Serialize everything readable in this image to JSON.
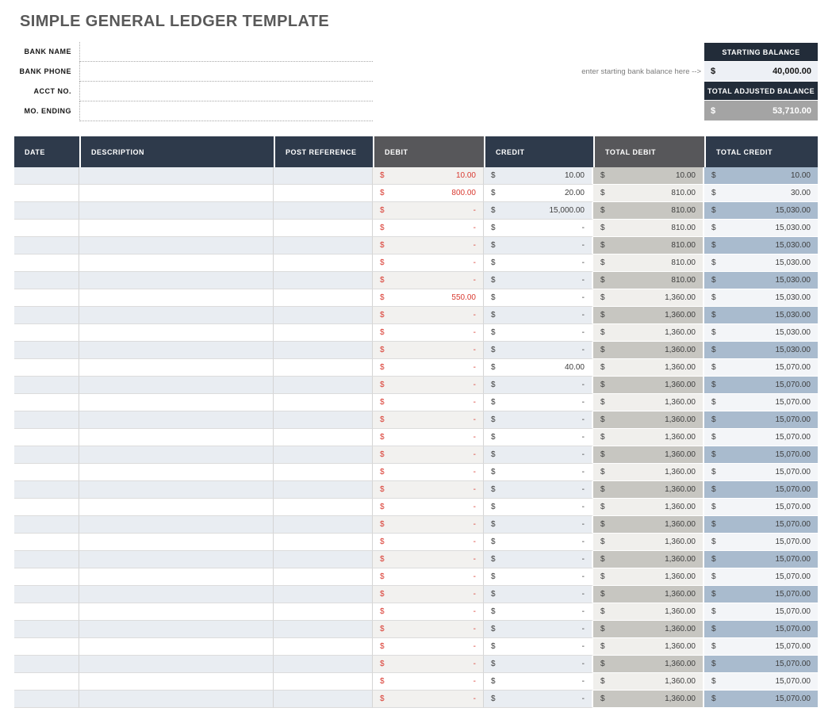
{
  "page_title": "SIMPLE GENERAL LEDGER TEMPLATE",
  "account_form": {
    "fields": [
      {
        "label": "BANK NAME",
        "value": ""
      },
      {
        "label": "BANK PHONE",
        "value": ""
      },
      {
        "label": "ACCT NO.",
        "value": ""
      },
      {
        "label": "MO. ENDING",
        "value": ""
      }
    ]
  },
  "balances": {
    "note": "enter starting bank balance here -->",
    "starting": {
      "label": "STARTING BALANCE",
      "currency": "$",
      "amount": "40,000.00"
    },
    "adjusted": {
      "label": "TOTAL ADJUSTED BALANCE",
      "currency": "$",
      "amount": "53,710.00"
    }
  },
  "colors": {
    "header_navy": "#2e3a4b",
    "header_gray": "#57575a",
    "balance_header_navy": "#222c39",
    "starting_value_bg": "#edf0f5",
    "adjusted_value_bg": "#a4a4a4",
    "debit_text_red": "#d93a30",
    "stripe_blue": "#e9edf2",
    "stripe_debit": "#f2f1ef",
    "total_debit_stripe": "#c7c6c1",
    "total_debit_plain": "#f0efec",
    "total_credit_stripe": "#a9bbce",
    "total_credit_plain": "#f3f5f8"
  },
  "table": {
    "currency": "$",
    "columns": [
      {
        "label": "DATE"
      },
      {
        "label": "DESCRIPTION"
      },
      {
        "label": "POST REFERENCE"
      },
      {
        "label": "DEBIT"
      },
      {
        "label": "CREDIT"
      },
      {
        "label": "TOTAL DEBIT"
      },
      {
        "label": "TOTAL CREDIT"
      }
    ],
    "rows": [
      {
        "date": "",
        "description": "",
        "post_reference": "",
        "debit": "10.00",
        "credit": "10.00",
        "total_debit": "10.00",
        "total_credit": "10.00"
      },
      {
        "date": "",
        "description": "",
        "post_reference": "",
        "debit": "800.00",
        "credit": "20.00",
        "total_debit": "810.00",
        "total_credit": "30.00"
      },
      {
        "date": "",
        "description": "",
        "post_reference": "",
        "debit": "-",
        "credit": "15,000.00",
        "total_debit": "810.00",
        "total_credit": "15,030.00"
      },
      {
        "date": "",
        "description": "",
        "post_reference": "",
        "debit": "-",
        "credit": "-",
        "total_debit": "810.00",
        "total_credit": "15,030.00"
      },
      {
        "date": "",
        "description": "",
        "post_reference": "",
        "debit": "-",
        "credit": "-",
        "total_debit": "810.00",
        "total_credit": "15,030.00"
      },
      {
        "date": "",
        "description": "",
        "post_reference": "",
        "debit": "-",
        "credit": "-",
        "total_debit": "810.00",
        "total_credit": "15,030.00"
      },
      {
        "date": "",
        "description": "",
        "post_reference": "",
        "debit": "-",
        "credit": "-",
        "total_debit": "810.00",
        "total_credit": "15,030.00"
      },
      {
        "date": "",
        "description": "",
        "post_reference": "",
        "debit": "550.00",
        "credit": "-",
        "total_debit": "1,360.00",
        "total_credit": "15,030.00"
      },
      {
        "date": "",
        "description": "",
        "post_reference": "",
        "debit": "-",
        "credit": "-",
        "total_debit": "1,360.00",
        "total_credit": "15,030.00"
      },
      {
        "date": "",
        "description": "",
        "post_reference": "",
        "debit": "-",
        "credit": "-",
        "total_debit": "1,360.00",
        "total_credit": "15,030.00"
      },
      {
        "date": "",
        "description": "",
        "post_reference": "",
        "debit": "-",
        "credit": "-",
        "total_debit": "1,360.00",
        "total_credit": "15,030.00"
      },
      {
        "date": "",
        "description": "",
        "post_reference": "",
        "debit": "-",
        "credit": "40.00",
        "total_debit": "1,360.00",
        "total_credit": "15,070.00"
      },
      {
        "date": "",
        "description": "",
        "post_reference": "",
        "debit": "-",
        "credit": "-",
        "total_debit": "1,360.00",
        "total_credit": "15,070.00"
      },
      {
        "date": "",
        "description": "",
        "post_reference": "",
        "debit": "-",
        "credit": "-",
        "total_debit": "1,360.00",
        "total_credit": "15,070.00"
      },
      {
        "date": "",
        "description": "",
        "post_reference": "",
        "debit": "-",
        "credit": "-",
        "total_debit": "1,360.00",
        "total_credit": "15,070.00"
      },
      {
        "date": "",
        "description": "",
        "post_reference": "",
        "debit": "-",
        "credit": "-",
        "total_debit": "1,360.00",
        "total_credit": "15,070.00"
      },
      {
        "date": "",
        "description": "",
        "post_reference": "",
        "debit": "-",
        "credit": "-",
        "total_debit": "1,360.00",
        "total_credit": "15,070.00"
      },
      {
        "date": "",
        "description": "",
        "post_reference": "",
        "debit": "-",
        "credit": "-",
        "total_debit": "1,360.00",
        "total_credit": "15,070.00"
      },
      {
        "date": "",
        "description": "",
        "post_reference": "",
        "debit": "-",
        "credit": "-",
        "total_debit": "1,360.00",
        "total_credit": "15,070.00"
      },
      {
        "date": "",
        "description": "",
        "post_reference": "",
        "debit": "-",
        "credit": "-",
        "total_debit": "1,360.00",
        "total_credit": "15,070.00"
      },
      {
        "date": "",
        "description": "",
        "post_reference": "",
        "debit": "-",
        "credit": "-",
        "total_debit": "1,360.00",
        "total_credit": "15,070.00"
      },
      {
        "date": "",
        "description": "",
        "post_reference": "",
        "debit": "-",
        "credit": "-",
        "total_debit": "1,360.00",
        "total_credit": "15,070.00"
      },
      {
        "date": "",
        "description": "",
        "post_reference": "",
        "debit": "-",
        "credit": "-",
        "total_debit": "1,360.00",
        "total_credit": "15,070.00"
      },
      {
        "date": "",
        "description": "",
        "post_reference": "",
        "debit": "-",
        "credit": "-",
        "total_debit": "1,360.00",
        "total_credit": "15,070.00"
      },
      {
        "date": "",
        "description": "",
        "post_reference": "",
        "debit": "-",
        "credit": "-",
        "total_debit": "1,360.00",
        "total_credit": "15,070.00"
      },
      {
        "date": "",
        "description": "",
        "post_reference": "",
        "debit": "-",
        "credit": "-",
        "total_debit": "1,360.00",
        "total_credit": "15,070.00"
      },
      {
        "date": "",
        "description": "",
        "post_reference": "",
        "debit": "-",
        "credit": "-",
        "total_debit": "1,360.00",
        "total_credit": "15,070.00"
      },
      {
        "date": "",
        "description": "",
        "post_reference": "",
        "debit": "-",
        "credit": "-",
        "total_debit": "1,360.00",
        "total_credit": "15,070.00"
      },
      {
        "date": "",
        "description": "",
        "post_reference": "",
        "debit": "-",
        "credit": "-",
        "total_debit": "1,360.00",
        "total_credit": "15,070.00"
      },
      {
        "date": "",
        "description": "",
        "post_reference": "",
        "debit": "-",
        "credit": "-",
        "total_debit": "1,360.00",
        "total_credit": "15,070.00"
      },
      {
        "date": "",
        "description": "",
        "post_reference": "",
        "debit": "-",
        "credit": "-",
        "total_debit": "1,360.00",
        "total_credit": "15,070.00"
      }
    ]
  }
}
